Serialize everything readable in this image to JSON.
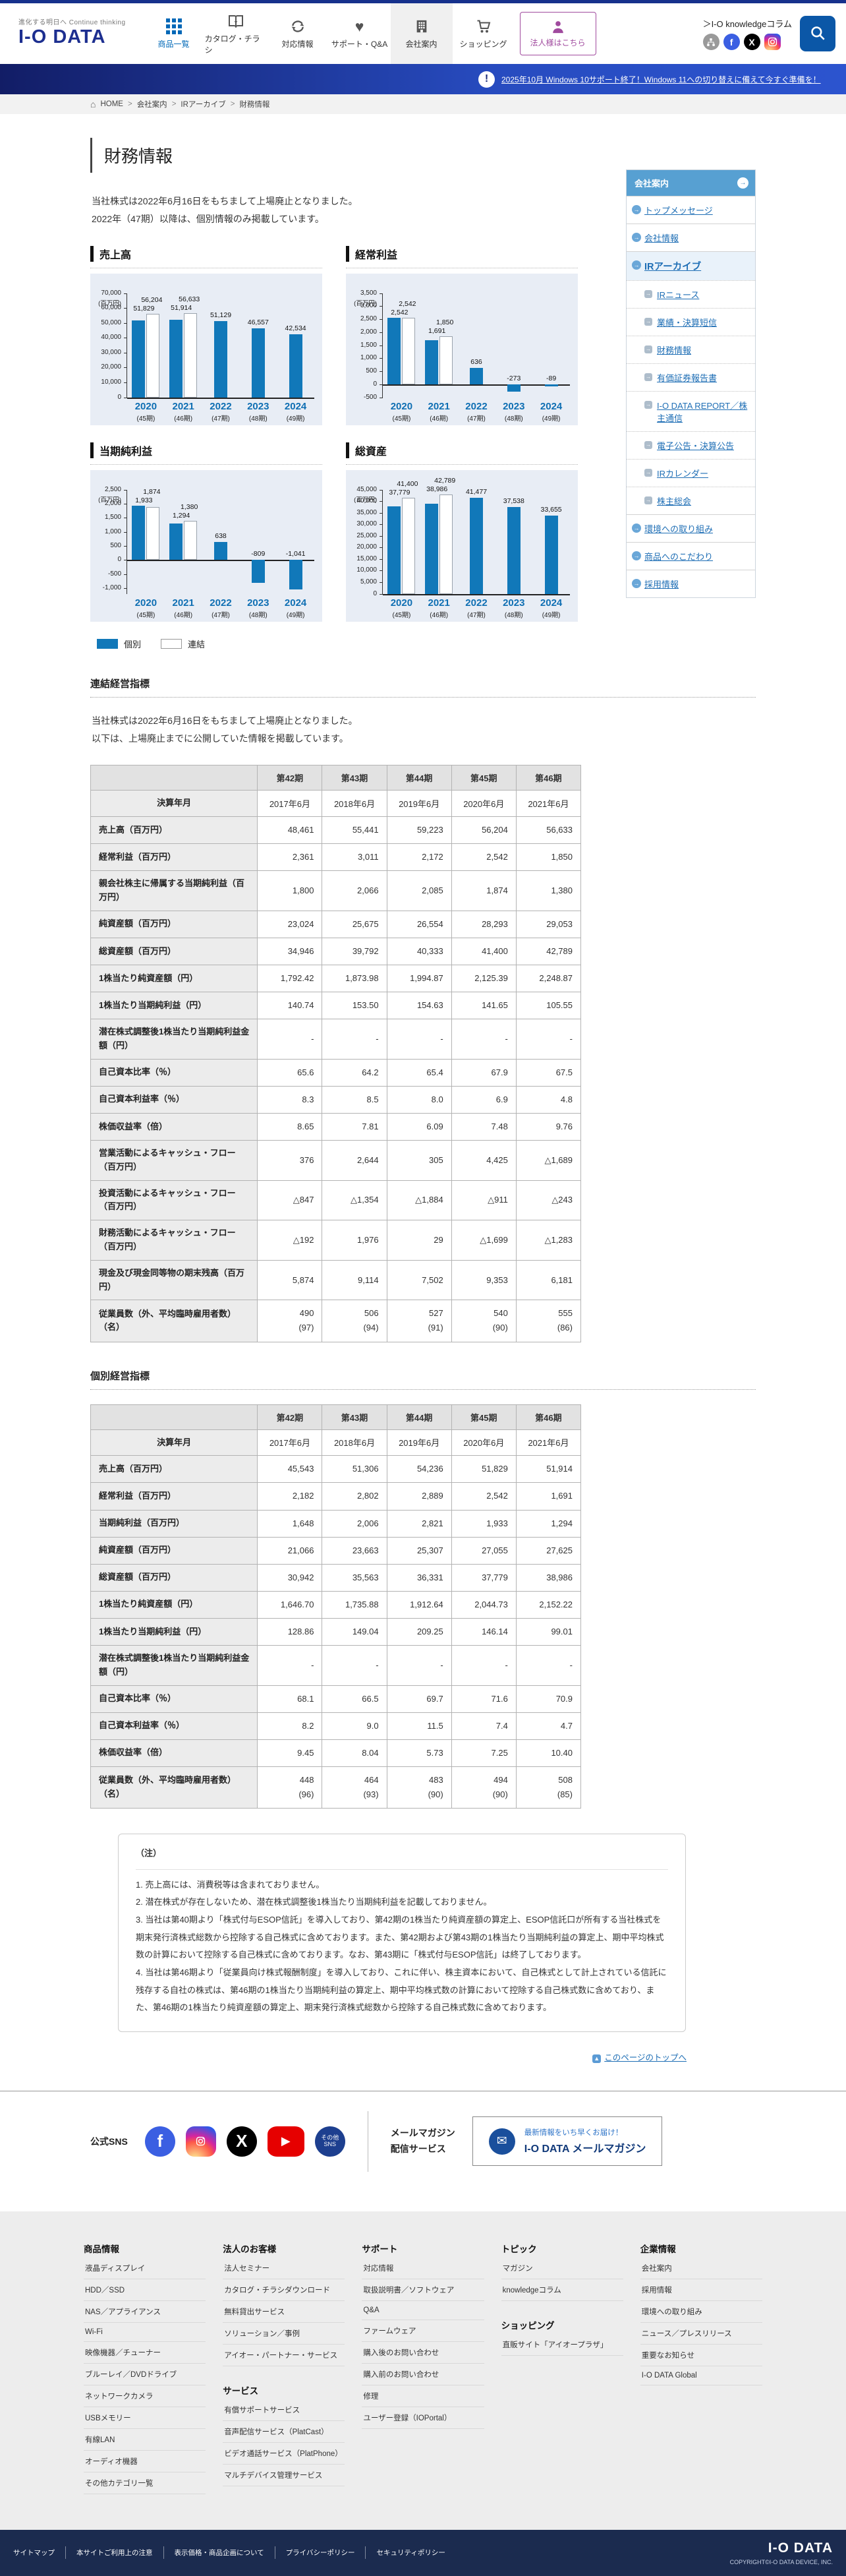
{
  "header": {
    "tagline": "進化する明日へ Continue thinking",
    "logo_text": "I-O DATA",
    "nav": [
      {
        "id": "products",
        "icon": "grid",
        "label": "商品一覧",
        "accent": true
      },
      {
        "id": "catalog",
        "icon": "catalog",
        "label": "カタログ・チラシ"
      },
      {
        "id": "compatibility",
        "icon": "sync",
        "label": "対応情報"
      },
      {
        "id": "support",
        "icon": "heart",
        "label": "サポート・Q&A"
      },
      {
        "id": "company",
        "icon": "building",
        "label": "会社案内",
        "active": true
      },
      {
        "id": "shopping",
        "icon": "cart",
        "label": "ショッピング"
      }
    ],
    "corporate_button": "法人様はこちら",
    "knowledge_link": "＞I-O knowledgeコラム",
    "social": [
      "share",
      "facebook",
      "x",
      "instagram"
    ]
  },
  "notice": {
    "text": "2025年10月 Windows 10サポート終了！Windows 11への切り替えに備えて今すぐ準備を！"
  },
  "breadcrumb": [
    "HOME",
    "会社案内",
    "IRアーカイブ",
    "財務情報"
  ],
  "page": {
    "title": "財務情報",
    "intro1": "当社株式は2022年6月16日をもちまして上場廃止となりました。",
    "intro2": "2022年（47期）以降は、個別情報のみ掲載しています。"
  },
  "legend": {
    "kobetsu": "個別",
    "renketsu": "連結"
  },
  "chart_data": [
    {
      "type": "bar",
      "title": "売上高",
      "unit": "(百万円)",
      "categories": [
        "2020",
        "2021",
        "2022",
        "2023",
        "2024"
      ],
      "category_terms": [
        "(45期)",
        "(46期)",
        "(47期)",
        "(48期)",
        "(49期)"
      ],
      "series": [
        {
          "name": "個別",
          "values": [
            51829,
            51914,
            51129,
            46557,
            42534
          ]
        },
        {
          "name": "連結",
          "values": [
            56204,
            56633,
            null,
            null,
            null
          ]
        }
      ],
      "ylim": [
        0,
        70000
      ],
      "ytick": 10000
    },
    {
      "type": "bar",
      "title": "経常利益",
      "unit": "(百万円)",
      "categories": [
        "2020",
        "2021",
        "2022",
        "2023",
        "2024"
      ],
      "category_terms": [
        "(45期)",
        "(46期)",
        "(47期)",
        "(48期)",
        "(49期)"
      ],
      "series": [
        {
          "name": "個別",
          "values": [
            2542,
            1691,
            636,
            -273,
            -89
          ]
        },
        {
          "name": "連結",
          "values": [
            2542,
            1850,
            null,
            null,
            null
          ]
        }
      ],
      "ylim": [
        -500,
        3500
      ],
      "ytick": 500
    },
    {
      "type": "bar",
      "title": "当期純利益",
      "unit": "(百万円)",
      "categories": [
        "2020",
        "2021",
        "2022",
        "2023",
        "2024"
      ],
      "category_terms": [
        "(45期)",
        "(46期)",
        "(47期)",
        "(48期)",
        "(49期)"
      ],
      "series": [
        {
          "name": "個別",
          "values": [
            1933,
            1294,
            638,
            -809,
            -1041
          ]
        },
        {
          "name": "連結",
          "values": [
            1874,
            1380,
            null,
            null,
            null
          ]
        }
      ],
      "ylim": [
        -1200,
        2500
      ],
      "ytick": 500
    },
    {
      "type": "bar",
      "title": "総資産",
      "unit": "(百万円)",
      "categories": [
        "2020",
        "2021",
        "2022",
        "2023",
        "2024"
      ],
      "category_terms": [
        "(45期)",
        "(46期)",
        "(47期)",
        "(48期)",
        "(49期)"
      ],
      "series": [
        {
          "name": "個別",
          "values": [
            37779,
            38986,
            41477,
            37538,
            33655
          ]
        },
        {
          "name": "連結",
          "values": [
            41400,
            42789,
            null,
            null,
            null
          ]
        }
      ],
      "ylim": [
        0,
        45000
      ],
      "ytick": 5000
    }
  ],
  "sidebar": {
    "title": "会社案内",
    "items": [
      {
        "label": "トップメッセージ",
        "level": 1
      },
      {
        "label": "会社情報",
        "level": 1
      },
      {
        "label": "IRアーカイブ",
        "level": 1,
        "active": true
      },
      {
        "label": "IRニュース",
        "level": 2
      },
      {
        "label": "業績・決算短信",
        "level": 2
      },
      {
        "label": "財務情報",
        "level": 2
      },
      {
        "label": "有価証券報告書",
        "level": 2
      },
      {
        "label": "I-O DATA REPORT／株主通信",
        "level": 2
      },
      {
        "label": "電子公告・決算公告",
        "level": 2
      },
      {
        "label": "IRカレンダー",
        "level": 2
      },
      {
        "label": "株主総会",
        "level": 2
      },
      {
        "label": "環境への取り組み",
        "level": 1
      },
      {
        "label": "商品へのこだわり",
        "level": 1
      },
      {
        "label": "採用情報",
        "level": 1
      }
    ]
  },
  "consolidated": {
    "heading": "連結経営指標",
    "intro1": "当社株式は2022年6月16日をもちまして上場廃止となりました。",
    "intro2": "以下は、上場廃止までに公開していた情報を掲載しています。",
    "table": {
      "periods": [
        "第42期",
        "第43期",
        "第44期",
        "第45期",
        "第46期"
      ],
      "date_label": "決算年月",
      "dates": [
        "2017年6月",
        "2018年6月",
        "2019年6月",
        "2020年6月",
        "2021年6月"
      ],
      "rows": [
        {
          "label": "売上高（百万円）",
          "values": [
            "48,461",
            "55,441",
            "59,223",
            "56,204",
            "56,633"
          ]
        },
        {
          "label": "経常利益（百万円）",
          "values": [
            "2,361",
            "3,011",
            "2,172",
            "2,542",
            "1,850"
          ]
        },
        {
          "label": "親会社株主に帰属する当期純利益（百万円）",
          "values": [
            "1,800",
            "2,066",
            "2,085",
            "1,874",
            "1,380"
          ]
        },
        {
          "label": "純資産額（百万円）",
          "values": [
            "23,024",
            "25,675",
            "26,554",
            "28,293",
            "29,053"
          ]
        },
        {
          "label": "総資産額（百万円）",
          "values": [
            "34,946",
            "39,792",
            "40,333",
            "41,400",
            "42,789"
          ]
        },
        {
          "label": "1株当たり純資産額（円）",
          "values": [
            "1,792.42",
            "1,873.98",
            "1,994.87",
            "2,125.39",
            "2,248.87"
          ]
        },
        {
          "label": "1株当たり当期純利益（円）",
          "values": [
            "140.74",
            "153.50",
            "154.63",
            "141.65",
            "105.55"
          ]
        },
        {
          "label": "潜在株式調整後1株当たり当期純利益金額（円）",
          "values": [
            "-",
            "-",
            "-",
            "-",
            "-"
          ]
        },
        {
          "label": "自己資本比率（％）",
          "values": [
            "65.6",
            "64.2",
            "65.4",
            "67.9",
            "67.5"
          ]
        },
        {
          "label": "自己資本利益率（％）",
          "values": [
            "8.3",
            "8.5",
            "8.0",
            "6.9",
            "4.8"
          ]
        },
        {
          "label": "株価収益率（倍）",
          "values": [
            "8.65",
            "7.81",
            "6.09",
            "7.48",
            "9.76"
          ]
        },
        {
          "label": "営業活動によるキャッシュ・フロー（百万円）",
          "values": [
            "376",
            "2,644",
            "305",
            "4,425",
            "△1,689"
          ]
        },
        {
          "label": "投資活動によるキャッシュ・フロー（百万円）",
          "values": [
            "△847",
            "△1,354",
            "△1,884",
            "△911",
            "△243"
          ]
        },
        {
          "label": "財務活動によるキャッシュ・フロー（百万円）",
          "values": [
            "△192",
            "1,976",
            "29",
            "△1,699",
            "△1,283"
          ]
        },
        {
          "label": "現金及び現金同等物の期末残高（百万円）",
          "values": [
            "5,874",
            "9,114",
            "7,502",
            "9,353",
            "6,181"
          ]
        },
        {
          "label": "従業員数（外、平均臨時雇用者数）（名）",
          "values": [
            "490|(97)",
            "506|(94)",
            "527|(91)",
            "540|(90)",
            "555|(86)"
          ]
        }
      ]
    }
  },
  "nonconsolidated": {
    "heading": "個別経営指標",
    "table": {
      "periods": [
        "第42期",
        "第43期",
        "第44期",
        "第45期",
        "第46期"
      ],
      "date_label": "決算年月",
      "dates": [
        "2017年6月",
        "2018年6月",
        "2019年6月",
        "2020年6月",
        "2021年6月"
      ],
      "rows": [
        {
          "label": "売上高（百万円）",
          "values": [
            "45,543",
            "51,306",
            "54,236",
            "51,829",
            "51,914"
          ]
        },
        {
          "label": "経常利益（百万円）",
          "values": [
            "2,182",
            "2,802",
            "2,889",
            "2,542",
            "1,691"
          ]
        },
        {
          "label": "当期純利益（百万円）",
          "values": [
            "1,648",
            "2,006",
            "2,821",
            "1,933",
            "1,294"
          ]
        },
        {
          "label": "純資産額（百万円）",
          "values": [
            "21,066",
            "23,663",
            "25,307",
            "27,055",
            "27,625"
          ]
        },
        {
          "label": "総資産額（百万円）",
          "values": [
            "30,942",
            "35,563",
            "36,331",
            "37,779",
            "38,986"
          ]
        },
        {
          "label": "1株当たり純資産額（円）",
          "values": [
            "1,646.70",
            "1,735.88",
            "1,912.64",
            "2,044.73",
            "2,152.22"
          ]
        },
        {
          "label": "1株当たり当期純利益（円）",
          "values": [
            "128.86",
            "149.04",
            "209.25",
            "146.14",
            "99.01"
          ]
        },
        {
          "label": "潜在株式調整後1株当たり当期純利益金額（円）",
          "values": [
            "-",
            "-",
            "-",
            "-",
            "-"
          ]
        },
        {
          "label": "自己資本比率（％）",
          "values": [
            "68.1",
            "66.5",
            "69.7",
            "71.6",
            "70.9"
          ]
        },
        {
          "label": "自己資本利益率（％）",
          "values": [
            "8.2",
            "9.0",
            "11.5",
            "7.4",
            "4.7"
          ]
        },
        {
          "label": "株価収益率（倍）",
          "values": [
            "9.45",
            "8.04",
            "5.73",
            "7.25",
            "10.40"
          ]
        },
        {
          "label": "従業員数（外、平均臨時雇用者数）（名）",
          "values": [
            "448|(96)",
            "464|(93)",
            "483|(90)",
            "494|(90)",
            "508|(85)"
          ]
        }
      ]
    }
  },
  "notes": {
    "title": "（注）",
    "items": [
      "1. 売上高には、消費税等は含まれておりません。",
      "2. 潜在株式が存在しないため、潜在株式調整後1株当たり当期純利益を記載しておりません。",
      "3. 当社は第40期より「株式付与ESOP信託」を導入しており、第42期の1株当たり純資産額の算定上、ESOP信託口が所有する当社株式を期末発行済株式総数から控除する自己株式に含めております。また、第42期および第43期の1株当たり当期純利益の算定上、期中平均株式数の計算において控除する自己株式に含めております。なお、第43期に「株式付与ESOP信託」は終了しております。",
      "4. 当社は第46期より「従業員向け株式報酬制度」を導入しており、これに伴い、株主資本において、自己株式として計上されている信託に残存する自社の株式は、第46期の1株当たり当期純利益の算定上、期中平均株式数の計算において控除する自己株式数に含めており、また、第46期の1株当たり純資産額の算定上、期末発行済株式総数から控除する自己株式数に含めております。"
    ]
  },
  "back_to_top": "このページのトップへ",
  "footer": {
    "sns": {
      "label": "公式SNS",
      "icons": [
        {
          "type": "facebook"
        },
        {
          "type": "instagram"
        },
        {
          "type": "x"
        },
        {
          "type": "youtube"
        },
        {
          "type": "other",
          "line1": "その他",
          "line2": "SNS"
        }
      ],
      "mail_label1": "メールマガジン",
      "mail_label2": "配信サービス",
      "box_line1": "最新情報をいち早くお届け！",
      "box_line2": "I-O DATA メールマガジン"
    },
    "columns": [
      {
        "heading": "商品情報",
        "items": [
          "液晶ディスプレイ",
          "HDD／SSD",
          "NAS／アプライアンス",
          "Wi-Fi",
          "映像機器／チューナー",
          "ブルーレイ／DVDドライブ",
          "ネットワークカメラ",
          "USBメモリー",
          "有線LAN",
          "オーディオ機器",
          "その他カテゴリ一覧"
        ]
      },
      {
        "heading": "法人のお客様",
        "items": [
          "法人セミナー",
          "カタログ・チラシダウンロード",
          "無料貸出サービス",
          "ソリューション／事例",
          "アイオー・パートナー・サービス"
        ],
        "subheading": "サービス",
        "subitems": [
          "有償サポートサービス",
          "音声配信サービス（PlatCast）",
          "ビデオ通話サービス（PlatPhone）",
          "マルチデバイス管理サービス"
        ]
      },
      {
        "heading": "サポート",
        "items": [
          "対応情報",
          "取扱説明書／ソフトウェア",
          "Q&A",
          "ファームウェア",
          "購入後のお問い合わせ",
          "購入前のお問い合わせ",
          "修理",
          "ユーザー登録（IOPortal）"
        ]
      },
      {
        "heading": "トピック",
        "items": [
          "マガジン",
          "knowledgeコラム"
        ],
        "subheading": "ショッピング",
        "subitems": [
          "直販サイト「アイオープラザ」"
        ]
      },
      {
        "heading": "企業情報",
        "items": [
          "会社案内",
          "採用情報",
          "環境への取り組み",
          "ニュース／プレスリリース",
          "重要なお知らせ",
          "I-O DATA Global"
        ]
      }
    ],
    "bottom": {
      "links": [
        "サイトマップ",
        "本サイトご利用上の注意",
        "表示価格・商品企画について",
        "プライバシーポリシー",
        "セキュリティポリシー"
      ],
      "logo": "I-O DATA",
      "copyright": "COPYRIGHT©I-O DATA DEVICE, INC."
    }
  }
}
